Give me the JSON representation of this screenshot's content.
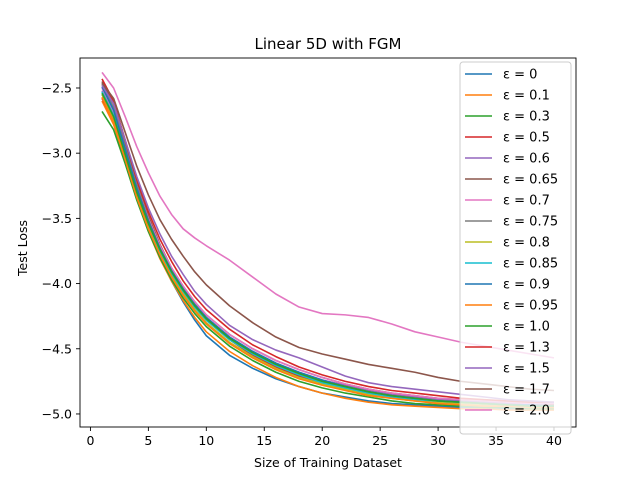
{
  "chart_data": {
    "type": "line",
    "title": "Linear 5D with FGM",
    "xlabel": "Size of Training Dataset",
    "ylabel": "Test Loss",
    "xlim": [
      -0.9,
      41.9
    ],
    "ylim": [
      -5.1,
      -2.27
    ],
    "xticks": [
      0,
      5,
      10,
      15,
      20,
      25,
      30,
      35,
      40
    ],
    "yticks": [
      -5.0,
      -4.5,
      -4.0,
      -3.5,
      -3.0,
      -2.5
    ],
    "xtick_labels": [
      "0",
      "5",
      "10",
      "15",
      "20",
      "25",
      "30",
      "35",
      "40"
    ],
    "ytick_labels": [
      "−5.0",
      "−4.5",
      "−4.0",
      "−3.5",
      "−3.0",
      "−2.5"
    ],
    "grid": false,
    "legend_position": "upper-right",
    "x": [
      1,
      2,
      3,
      4,
      5,
      6,
      7,
      8,
      9,
      10,
      12,
      14,
      16,
      18,
      20,
      22,
      24,
      26,
      28,
      30,
      32,
      34,
      36,
      38,
      40
    ],
    "series": [
      {
        "name": "ε = 0",
        "color": "#1f77b4",
        "values": [
          -2.55,
          -2.72,
          -3.02,
          -3.32,
          -3.58,
          -3.8,
          -3.98,
          -4.14,
          -4.28,
          -4.4,
          -4.55,
          -4.65,
          -4.73,
          -4.79,
          -4.84,
          -4.87,
          -4.9,
          -4.92,
          -4.93,
          -4.94,
          -4.95,
          -4.95,
          -4.96,
          -4.96,
          -4.96
        ]
      },
      {
        "name": "ε = 0.1",
        "color": "#ff7f0e",
        "values": [
          -2.6,
          -2.78,
          -3.06,
          -3.35,
          -3.6,
          -3.81,
          -3.98,
          -4.13,
          -4.26,
          -4.37,
          -4.52,
          -4.63,
          -4.72,
          -4.79,
          -4.84,
          -4.88,
          -4.91,
          -4.93,
          -4.94,
          -4.95,
          -4.96,
          -4.96,
          -4.97,
          -4.97,
          -4.97
        ]
      },
      {
        "name": "ε = 0.3",
        "color": "#2ca02c",
        "values": [
          -2.68,
          -2.82,
          -3.08,
          -3.36,
          -3.6,
          -3.8,
          -3.97,
          -4.11,
          -4.23,
          -4.33,
          -4.48,
          -4.59,
          -4.68,
          -4.75,
          -4.8,
          -4.84,
          -4.87,
          -4.9,
          -4.92,
          -4.93,
          -4.94,
          -4.95,
          -4.95,
          -4.96,
          -4.96
        ]
      },
      {
        "name": "ε = 0.5",
        "color": "#d62728",
        "values": [
          -2.58,
          -2.75,
          -3.03,
          -3.31,
          -3.55,
          -3.75,
          -3.92,
          -4.06,
          -4.18,
          -4.28,
          -4.43,
          -4.55,
          -4.64,
          -4.71,
          -4.76,
          -4.8,
          -4.83,
          -4.86,
          -4.88,
          -4.9,
          -4.91,
          -4.92,
          -4.93,
          -4.93,
          -4.94
        ]
      },
      {
        "name": "ε = 0.6",
        "color": "#9467bd",
        "values": [
          -2.52,
          -2.7,
          -2.98,
          -3.27,
          -3.52,
          -3.73,
          -3.9,
          -4.04,
          -4.16,
          -4.26,
          -4.41,
          -4.52,
          -4.61,
          -4.68,
          -4.74,
          -4.78,
          -4.82,
          -4.85,
          -4.87,
          -4.89,
          -4.9,
          -4.91,
          -4.92,
          -4.92,
          -4.93
        ]
      },
      {
        "name": "ε = 0.65",
        "color": "#8c564b",
        "values": [
          -2.45,
          -2.62,
          -2.92,
          -3.22,
          -3.48,
          -3.7,
          -3.88,
          -4.02,
          -4.14,
          -4.24,
          -4.39,
          -4.5,
          -4.59,
          -4.66,
          -4.72,
          -4.77,
          -4.81,
          -4.84,
          -4.86,
          -4.88,
          -4.89,
          -4.9,
          -4.91,
          -4.92,
          -4.93
        ]
      },
      {
        "name": "ε = 0.7",
        "color": "#e377c2",
        "values": [
          -2.5,
          -2.68,
          -2.96,
          -3.25,
          -3.5,
          -3.71,
          -3.88,
          -4.02,
          -4.14,
          -4.24,
          -4.39,
          -4.5,
          -4.59,
          -4.66,
          -4.72,
          -4.77,
          -4.81,
          -4.84,
          -4.86,
          -4.88,
          -4.89,
          -4.9,
          -4.91,
          -4.92,
          -4.92
        ]
      },
      {
        "name": "ε = 0.75",
        "color": "#7f7f7f",
        "values": [
          -2.47,
          -2.65,
          -2.95,
          -3.25,
          -3.51,
          -3.73,
          -3.91,
          -4.05,
          -4.17,
          -4.27,
          -4.42,
          -4.53,
          -4.62,
          -4.69,
          -4.75,
          -4.79,
          -4.83,
          -4.86,
          -4.88,
          -4.9,
          -4.91,
          -4.92,
          -4.93,
          -4.93,
          -4.94
        ]
      },
      {
        "name": "ε = 0.8",
        "color": "#bcbd22",
        "values": [
          -2.55,
          -2.73,
          -3.02,
          -3.31,
          -3.56,
          -3.77,
          -3.94,
          -4.08,
          -4.2,
          -4.3,
          -4.45,
          -4.56,
          -4.65,
          -4.72,
          -4.77,
          -4.81,
          -4.85,
          -4.88,
          -4.9,
          -4.91,
          -4.92,
          -4.93,
          -4.94,
          -4.94,
          -4.95
        ]
      },
      {
        "name": "ε = 0.85",
        "color": "#17becf",
        "values": [
          -2.53,
          -2.71,
          -3.0,
          -3.29,
          -3.54,
          -3.75,
          -3.92,
          -4.06,
          -4.18,
          -4.28,
          -4.43,
          -4.54,
          -4.63,
          -4.7,
          -4.76,
          -4.8,
          -4.84,
          -4.87,
          -4.89,
          -4.9,
          -4.91,
          -4.92,
          -4.93,
          -4.94,
          -4.94
        ]
      },
      {
        "name": "ε = 0.9",
        "color": "#1f77b4",
        "values": [
          -2.49,
          -2.67,
          -2.97,
          -3.27,
          -3.52,
          -3.73,
          -3.9,
          -4.04,
          -4.16,
          -4.26,
          -4.41,
          -4.52,
          -4.61,
          -4.68,
          -4.74,
          -4.79,
          -4.83,
          -4.86,
          -4.88,
          -4.9,
          -4.91,
          -4.92,
          -4.93,
          -4.93,
          -4.94
        ]
      },
      {
        "name": "ε = 0.95",
        "color": "#ff7f0e",
        "values": [
          -2.57,
          -2.76,
          -3.05,
          -3.34,
          -3.58,
          -3.78,
          -3.95,
          -4.09,
          -4.21,
          -4.31,
          -4.46,
          -4.57,
          -4.66,
          -4.73,
          -4.78,
          -4.82,
          -4.86,
          -4.88,
          -4.9,
          -4.92,
          -4.93,
          -4.94,
          -4.94,
          -4.95,
          -4.95
        ]
      },
      {
        "name": "ε = 1.0",
        "color": "#2ca02c",
        "values": [
          -2.54,
          -2.72,
          -3.01,
          -3.3,
          -3.54,
          -3.74,
          -3.91,
          -4.05,
          -4.17,
          -4.27,
          -4.42,
          -4.53,
          -4.62,
          -4.69,
          -4.75,
          -4.79,
          -4.83,
          -4.86,
          -4.88,
          -4.9,
          -4.91,
          -4.92,
          -4.93,
          -4.94,
          -4.94
        ]
      },
      {
        "name": "ε = 1.3",
        "color": "#d62728",
        "values": [
          -2.43,
          -2.6,
          -2.9,
          -3.2,
          -3.45,
          -3.66,
          -3.83,
          -3.98,
          -4.1,
          -4.2,
          -4.35,
          -4.47,
          -4.56,
          -4.64,
          -4.7,
          -4.75,
          -4.79,
          -4.82,
          -4.84,
          -4.86,
          -4.88,
          -4.89,
          -4.9,
          -4.91,
          -4.91
        ]
      },
      {
        "name": "ε = 1.5",
        "color": "#9467bd",
        "values": [
          -2.48,
          -2.62,
          -2.9,
          -3.18,
          -3.42,
          -3.62,
          -3.79,
          -3.93,
          -4.06,
          -4.16,
          -4.32,
          -4.43,
          -4.51,
          -4.57,
          -4.64,
          -4.71,
          -4.76,
          -4.79,
          -4.81,
          -4.83,
          -4.85,
          -4.87,
          -4.89,
          -4.9,
          -4.91
        ]
      },
      {
        "name": "ε = 1.7",
        "color": "#8c564b",
        "values": [
          -2.46,
          -2.58,
          -2.84,
          -3.1,
          -3.32,
          -3.51,
          -3.66,
          -3.79,
          -3.91,
          -4.01,
          -4.17,
          -4.3,
          -4.41,
          -4.49,
          -4.54,
          -4.58,
          -4.62,
          -4.65,
          -4.68,
          -4.72,
          -4.75,
          -4.77,
          -4.79,
          -4.81,
          -4.82
        ]
      },
      {
        "name": "ε = 2.0",
        "color": "#e377c2",
        "values": [
          -2.38,
          -2.5,
          -2.72,
          -2.95,
          -3.15,
          -3.33,
          -3.47,
          -3.58,
          -3.65,
          -3.71,
          -3.82,
          -3.95,
          -4.08,
          -4.18,
          -4.23,
          -4.24,
          -4.26,
          -4.31,
          -4.37,
          -4.41,
          -4.45,
          -4.48,
          -4.51,
          -4.54,
          -4.57
        ]
      }
    ]
  }
}
